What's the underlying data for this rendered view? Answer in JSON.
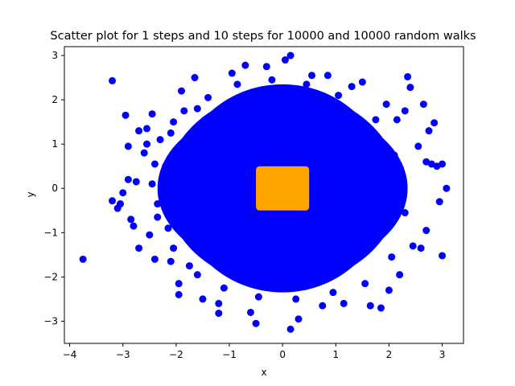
{
  "chart_data": {
    "type": "scatter",
    "title": "Scatter plot for 1 steps and 10 steps for 10000 and 10000 random walks",
    "xlabel": "x",
    "ylabel": "y",
    "xlim": [
      -4.1,
      3.4
    ],
    "ylim": [
      -3.5,
      3.2
    ],
    "xticks": [
      -4,
      -3,
      -2,
      -1,
      0,
      1,
      2,
      3
    ],
    "yticks": [
      -3,
      -2,
      -1,
      0,
      1,
      2,
      3
    ],
    "grid": false,
    "series": [
      {
        "color": "#0000ff",
        "points": [
          [
            -3.75,
            -1.6
          ],
          [
            -3.2,
            2.43
          ],
          [
            -3.2,
            -0.28
          ],
          [
            -3.0,
            -0.1
          ],
          [
            -3.05,
            -0.35
          ],
          [
            -2.95,
            1.65
          ],
          [
            -2.9,
            0.95
          ],
          [
            -2.85,
            -0.7
          ],
          [
            -2.8,
            -0.85
          ],
          [
            -2.75,
            0.15
          ],
          [
            -2.7,
            1.3
          ],
          [
            -2.55,
            1.35
          ],
          [
            -2.45,
            1.68
          ],
          [
            -2.5,
            -1.05
          ],
          [
            -2.4,
            -1.6
          ],
          [
            -2.45,
            0.1
          ],
          [
            -2.35,
            -0.65
          ],
          [
            -2.3,
            1.1
          ],
          [
            -2.1,
            -1.65
          ],
          [
            -1.95,
            -2.15
          ],
          [
            -1.95,
            -2.4
          ],
          [
            -1.85,
            1.75
          ],
          [
            -1.9,
            2.2
          ],
          [
            -1.65,
            2.5
          ],
          [
            -1.5,
            -2.5
          ],
          [
            -1.2,
            -2.6
          ],
          [
            -1.2,
            -2.82
          ],
          [
            -0.95,
            2.6
          ],
          [
            -0.7,
            2.78
          ],
          [
            -0.6,
            -2.8
          ],
          [
            -0.5,
            -3.05
          ],
          [
            -0.3,
            2.75
          ],
          [
            0.05,
            2.9
          ],
          [
            0.15,
            3.0
          ],
          [
            0.15,
            -3.18
          ],
          [
            0.3,
            -2.95
          ],
          [
            0.55,
            2.55
          ],
          [
            0.85,
            2.55
          ],
          [
            0.75,
            -2.65
          ],
          [
            1.15,
            -2.6
          ],
          [
            1.3,
            2.3
          ],
          [
            1.5,
            2.4
          ],
          [
            1.65,
            -2.65
          ],
          [
            1.85,
            -2.7
          ],
          [
            1.95,
            1.9
          ],
          [
            2.0,
            -2.3
          ],
          [
            2.15,
            1.55
          ],
          [
            2.2,
            -1.95
          ],
          [
            2.3,
            1.75
          ],
          [
            2.35,
            2.52
          ],
          [
            2.4,
            2.28
          ],
          [
            2.45,
            -1.3
          ],
          [
            2.55,
            0.95
          ],
          [
            2.6,
            -1.35
          ],
          [
            2.65,
            1.9
          ],
          [
            2.7,
            0.6
          ],
          [
            2.75,
            1.3
          ],
          [
            2.8,
            0.55
          ],
          [
            2.85,
            1.48
          ],
          [
            2.9,
            0.5
          ],
          [
            3.0,
            0.55
          ],
          [
            3.0,
            -1.52
          ],
          [
            3.08,
            0.0
          ],
          [
            2.95,
            -0.3
          ],
          [
            2.7,
            -0.95
          ],
          [
            -2.6,
            0.8
          ],
          [
            -2.2,
            0.5
          ],
          [
            -2.15,
            -0.9
          ],
          [
            -2.05,
            1.5
          ],
          [
            -1.75,
            -1.75
          ],
          [
            -1.4,
            2.05
          ],
          [
            -0.85,
            2.35
          ],
          [
            -0.2,
            2.45
          ],
          [
            0.45,
            2.35
          ],
          [
            1.05,
            2.1
          ],
          [
            1.75,
            1.55
          ],
          [
            2.1,
            0.75
          ],
          [
            2.3,
            -0.55
          ],
          [
            2.05,
            -1.55
          ],
          [
            1.55,
            -2.15
          ],
          [
            0.95,
            -2.35
          ],
          [
            0.25,
            -2.5
          ],
          [
            -0.45,
            -2.45
          ],
          [
            -1.1,
            -2.25
          ],
          [
            -1.6,
            -1.95
          ],
          [
            -2.05,
            -1.35
          ],
          [
            -2.35,
            -0.35
          ],
          [
            -2.4,
            0.55
          ],
          [
            -2.1,
            1.25
          ],
          [
            -1.6,
            1.8
          ],
          [
            -3.1,
            -0.45
          ],
          [
            -2.9,
            0.2
          ],
          [
            -2.7,
            -1.35
          ],
          [
            -2.55,
            1.0
          ]
        ]
      },
      {
        "color": "#ffa500",
        "points": []
      }
    ]
  }
}
